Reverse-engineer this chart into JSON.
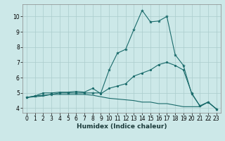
{
  "title": "",
  "xlabel": "Humidex (Indice chaleur)",
  "background_color": "#cce8e8",
  "grid_color": "#aacccc",
  "line_color": "#1a6b6b",
  "xlim": [
    -0.5,
    23.5
  ],
  "ylim": [
    3.7,
    10.8
  ],
  "x_ticks": [
    0,
    1,
    2,
    3,
    4,
    5,
    6,
    7,
    8,
    9,
    10,
    11,
    12,
    13,
    14,
    15,
    16,
    17,
    18,
    19,
    20,
    21,
    22,
    23
  ],
  "y_ticks": [
    4,
    5,
    6,
    7,
    8,
    9,
    10
  ],
  "line1_x": [
    0,
    1,
    2,
    3,
    4,
    5,
    6,
    7,
    8,
    9,
    10,
    11,
    12,
    13,
    14,
    15,
    16,
    17,
    18,
    19,
    20,
    21,
    22,
    23
  ],
  "line1_y": [
    4.7,
    4.8,
    4.85,
    4.9,
    5.0,
    5.0,
    5.0,
    5.0,
    5.0,
    5.0,
    6.5,
    7.6,
    7.85,
    9.15,
    10.4,
    9.65,
    9.7,
    10.0,
    7.5,
    6.8,
    4.95,
    4.15,
    4.4,
    3.95
  ],
  "line2_x": [
    0,
    1,
    2,
    3,
    4,
    5,
    6,
    7,
    8,
    9,
    10,
    11,
    12,
    13,
    14,
    15,
    16,
    17,
    18,
    19,
    20,
    21,
    22,
    23
  ],
  "line2_y": [
    4.7,
    4.8,
    5.0,
    5.0,
    5.05,
    5.05,
    5.1,
    5.05,
    5.3,
    4.95,
    5.3,
    5.45,
    5.6,
    6.1,
    6.3,
    6.5,
    6.85,
    7.0,
    6.8,
    6.5,
    5.0,
    4.15,
    4.4,
    3.95
  ],
  "line3_x": [
    0,
    1,
    2,
    3,
    4,
    5,
    6,
    7,
    8,
    9,
    10,
    11,
    12,
    13,
    14,
    15,
    16,
    17,
    18,
    19,
    20,
    21,
    22,
    23
  ],
  "line3_y": [
    4.7,
    4.75,
    4.8,
    4.9,
    4.9,
    4.9,
    4.9,
    4.9,
    4.85,
    4.75,
    4.65,
    4.6,
    4.55,
    4.5,
    4.4,
    4.4,
    4.3,
    4.3,
    4.2,
    4.1,
    4.1,
    4.1,
    4.4,
    3.95
  ]
}
